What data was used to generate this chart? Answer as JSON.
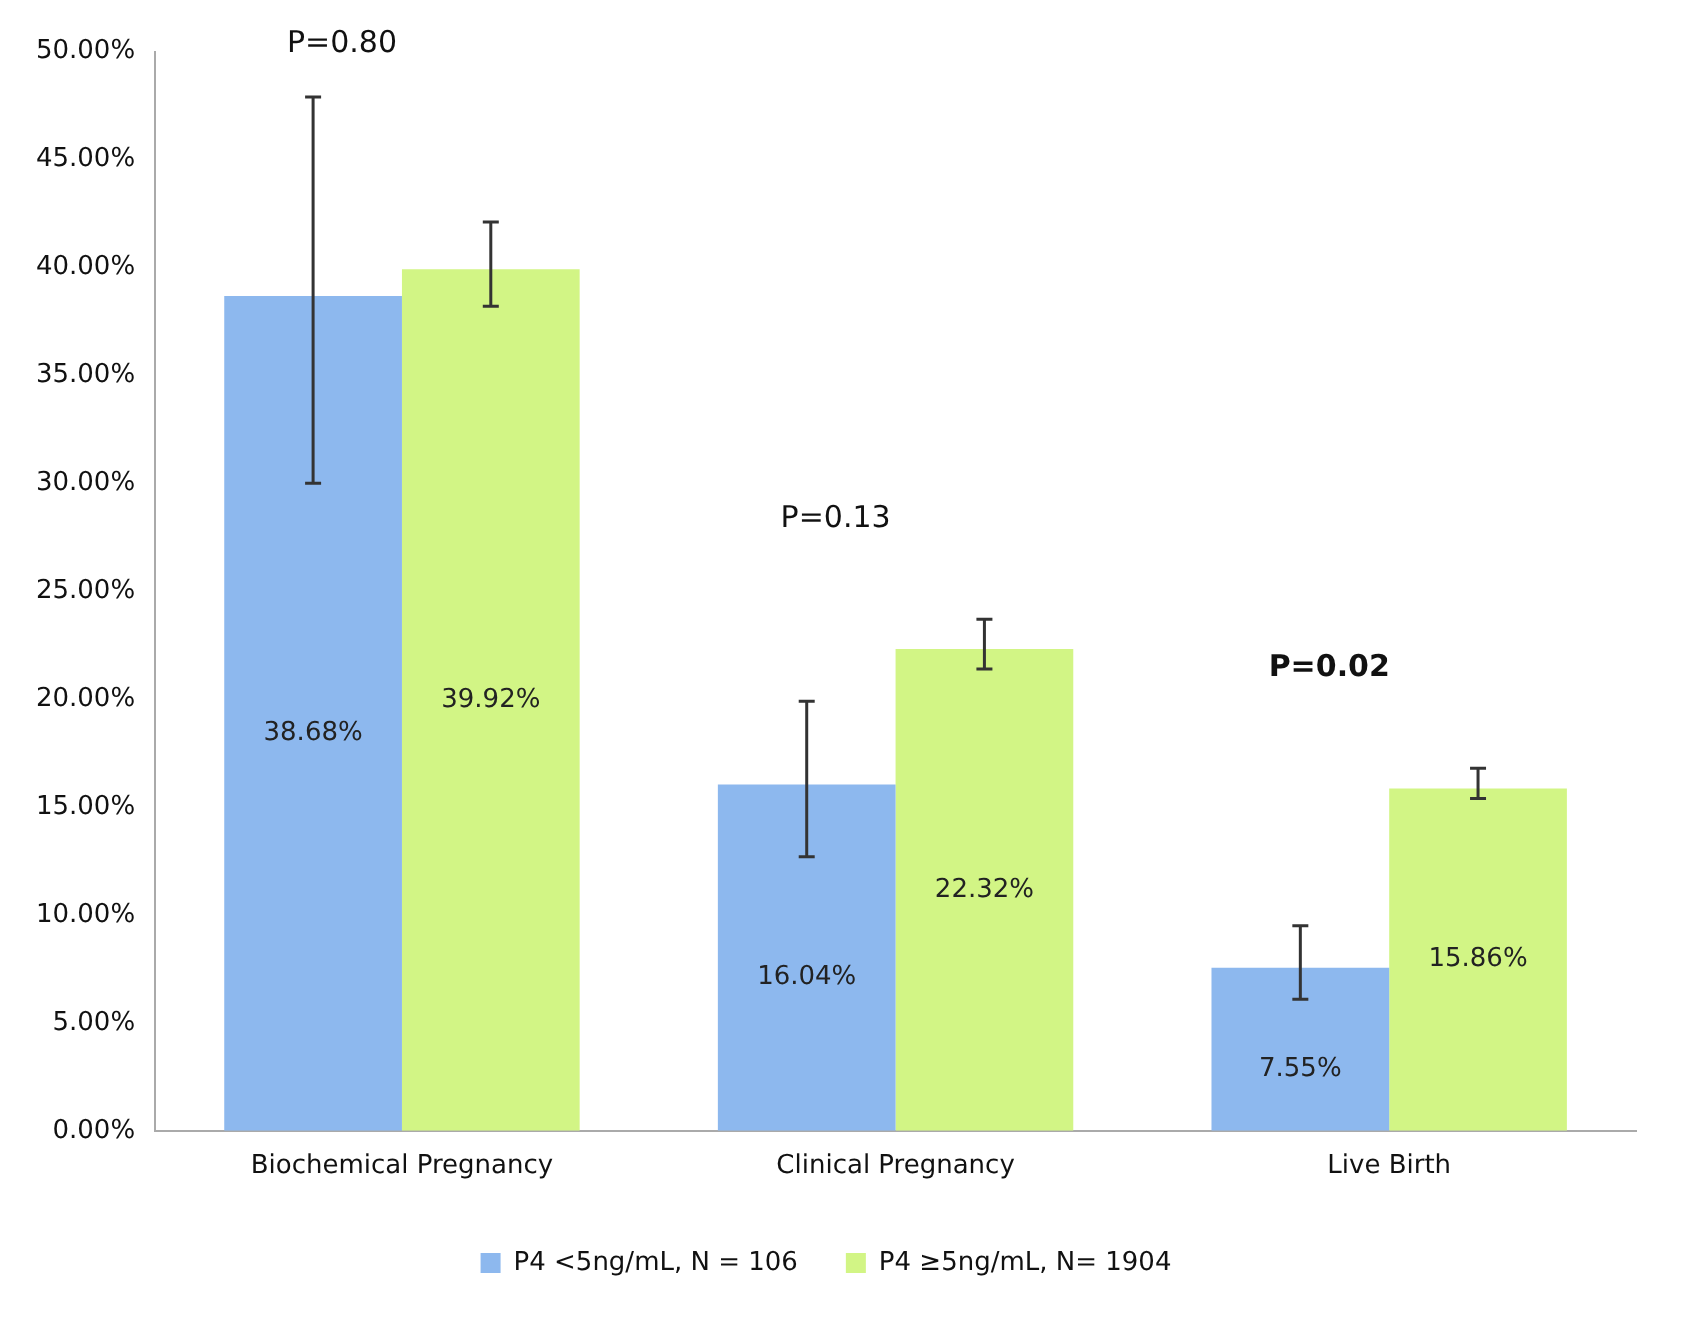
{
  "chart_data": {
    "type": "bar",
    "categories": [
      "Biochemical Pregnancy",
      "Clinical Pregnancy",
      "Live Birth"
    ],
    "series": [
      {
        "name": "P4 <5ng/mL, N = 106",
        "color": "#8db8ee",
        "values": [
          38.68,
          16.04,
          7.55
        ],
        "errors": [
          [
            30.0,
            47.9
          ],
          [
            12.7,
            19.9
          ],
          [
            6.1,
            9.5
          ]
        ],
        "value_labels": [
          "38.68%",
          "16.04%",
          "7.55%"
        ]
      },
      {
        "name": "P4 ≥5ng/mL, N= 1904",
        "color": "#d2f585",
        "values": [
          39.92,
          22.32,
          15.86
        ],
        "errors": [
          [
            38.2,
            42.1
          ],
          [
            21.4,
            23.7
          ],
          [
            15.4,
            16.8
          ]
        ],
        "value_labels": [
          "39.92%",
          "22.32%",
          "15.86%"
        ]
      }
    ],
    "ylim": [
      0,
      50
    ],
    "yticks": [
      {
        "value": 0,
        "label": "0.00%"
      },
      {
        "value": 5,
        "label": "5.00%"
      },
      {
        "value": 10,
        "label": "10.00%"
      },
      {
        "value": 15,
        "label": "15.00%"
      },
      {
        "value": 20,
        "label": "20.00%"
      },
      {
        "value": 25,
        "label": "25.00%"
      },
      {
        "value": 30,
        "label": "30.00%"
      },
      {
        "value": 35,
        "label": "35.00%"
      },
      {
        "value": 40,
        "label": "40.00%"
      },
      {
        "value": 45,
        "label": "45.00%"
      },
      {
        "value": 50,
        "label": "50.00%"
      }
    ],
    "annotations": [
      "P=0.80",
      "P=0.13",
      "P=0.02"
    ],
    "grid": false,
    "legend": "bottom"
  }
}
